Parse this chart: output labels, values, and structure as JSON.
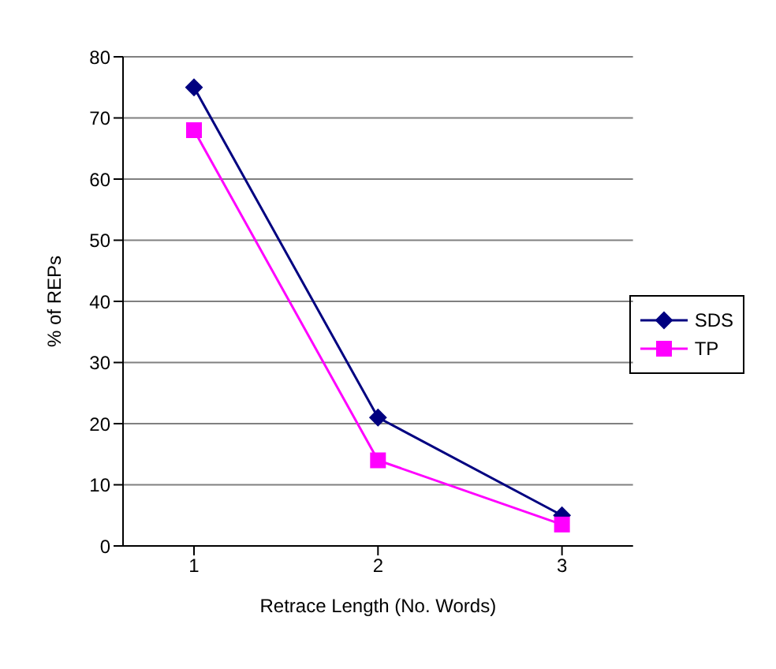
{
  "chart_data": {
    "type": "line",
    "xlabel": "Retrace Length (No. Words)",
    "ylabel": "% of REPs",
    "categories": [
      "1",
      "2",
      "3"
    ],
    "series": [
      {
        "name": "SDS",
        "color": "#000080",
        "marker": "diamond",
        "values": [
          75,
          21,
          5
        ]
      },
      {
        "name": "TP",
        "color": "#ff00ff",
        "marker": "square",
        "values": [
          68,
          14,
          3.5
        ]
      }
    ],
    "ylim": [
      0,
      80
    ],
    "yticks": [
      0,
      10,
      20,
      30,
      40,
      50,
      60,
      70,
      80
    ],
    "grid": "y",
    "legend": "right"
  }
}
